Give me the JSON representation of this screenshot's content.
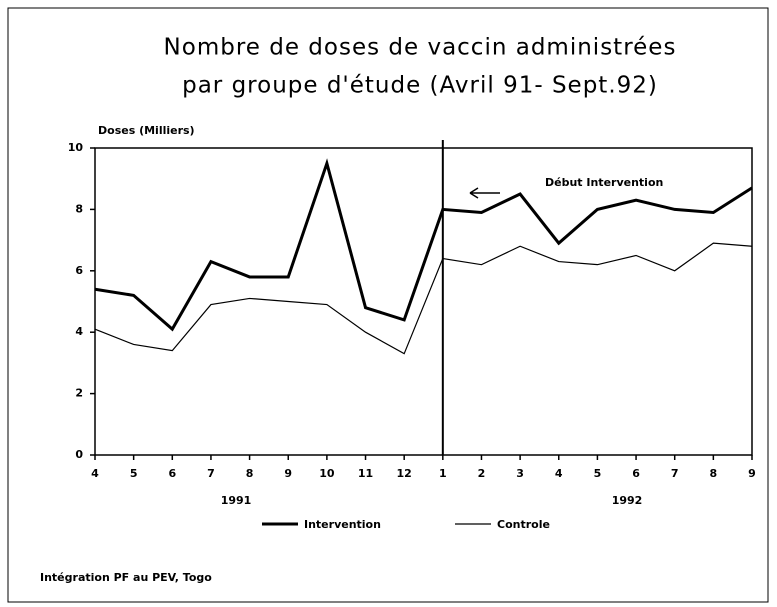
{
  "chart_data": {
    "type": "line",
    "title": [
      "Nombre de doses de vaccin administrées",
      "par groupe d'étude (Avril 91- Sept.92)"
    ],
    "y_label": "Doses (Milliers)",
    "categories": [
      "4",
      "5",
      "6",
      "7",
      "8",
      "9",
      "10",
      "11",
      "12",
      "1",
      "2",
      "3",
      "4",
      "5",
      "6",
      "7",
      "8",
      "9"
    ],
    "group_labels": [
      "1991",
      "1992"
    ],
    "annotation": "Début Intervention",
    "source": "Intégration PF au PEV, Togo",
    "ylim": [
      0,
      10
    ],
    "yticks": [
      0,
      2,
      4,
      6,
      8,
      10
    ],
    "series": [
      {
        "name": "Intervention",
        "color": "#000000",
        "line_width": 3,
        "values": [
          5.4,
          5.2,
          4.1,
          6.3,
          5.8,
          5.8,
          9.5,
          4.8,
          4.4,
          8.0,
          7.9,
          8.5,
          6.9,
          8.0,
          8.3,
          8.0,
          7.9,
          8.7
        ]
      },
      {
        "name": "Controle",
        "color": "#000000",
        "line_width": 1.2,
        "values": [
          4.1,
          3.6,
          3.4,
          4.9,
          5.1,
          5.0,
          4.9,
          4.0,
          3.3,
          6.4,
          6.2,
          6.8,
          6.3,
          6.2,
          6.5,
          6.0,
          6.9,
          6.8
        ]
      }
    ]
  }
}
